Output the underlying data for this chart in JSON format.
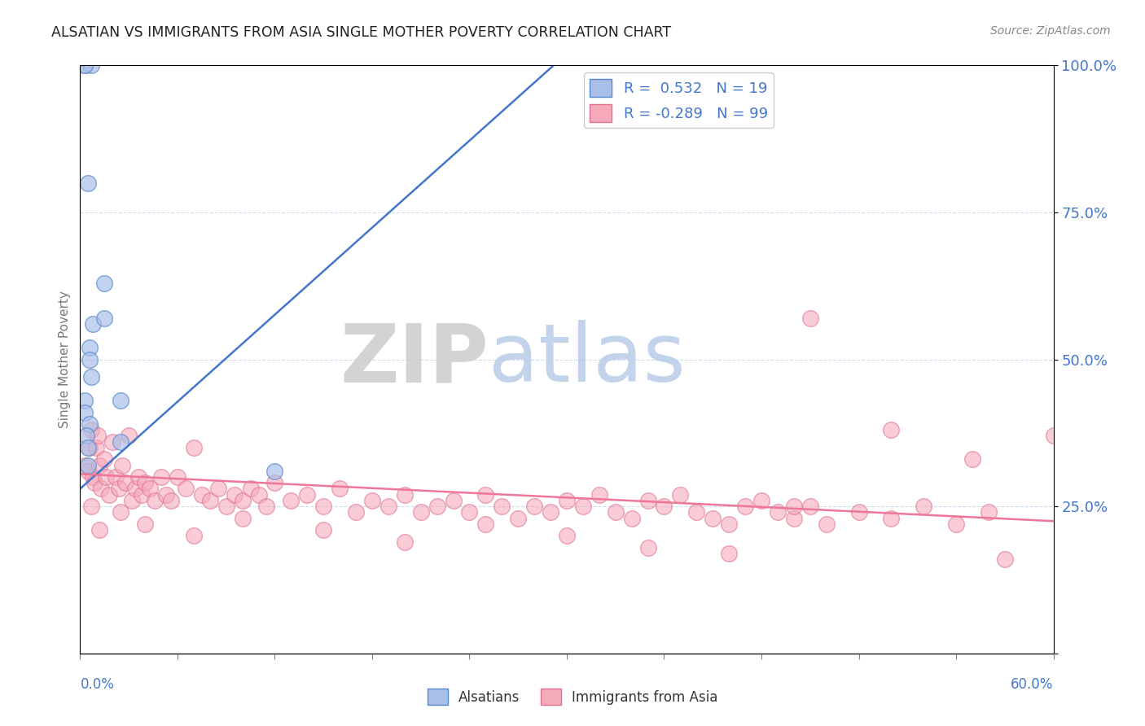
{
  "title": "ALSATIAN VS IMMIGRANTS FROM ASIA SINGLE MOTHER POVERTY CORRELATION CHART",
  "source": "Source: ZipAtlas.com",
  "ylabel": "Single Mother Poverty",
  "x_min": 0.0,
  "x_max": 0.6,
  "y_min": 0.0,
  "y_max": 1.0,
  "watermark_zip": "ZIP",
  "watermark_atlas": "atlas",
  "blue_R": 0.532,
  "blue_N": 19,
  "pink_R": -0.289,
  "pink_N": 99,
  "blue_fill": "#AABFE8",
  "blue_edge": "#5588CC",
  "pink_fill": "#F5AABB",
  "pink_edge": "#E07090",
  "blue_line": "#4477CC",
  "pink_line": "#EE7799",
  "legend_label_blue": "Alsatians",
  "legend_label_pink": "Immigrants from Asia",
  "blue_trend_x0": 0.0,
  "blue_trend_y0": 0.28,
  "blue_trend_x1": 0.3,
  "blue_trend_y1": 1.02,
  "pink_trend_x0": 0.0,
  "pink_trend_y0": 0.305,
  "pink_trend_x1": 0.6,
  "pink_trend_y1": 0.225,
  "alsatian_x": [
    0.003,
    0.007,
    0.003,
    0.003,
    0.003,
    0.006,
    0.004,
    0.005,
    0.008,
    0.006,
    0.006,
    0.007,
    0.015,
    0.015,
    0.025,
    0.025,
    0.12,
    0.005,
    0.005
  ],
  "alsatian_y": [
    1.0,
    1.0,
    1.0,
    0.43,
    0.41,
    0.39,
    0.37,
    0.35,
    0.56,
    0.52,
    0.5,
    0.47,
    0.63,
    0.57,
    0.43,
    0.36,
    0.31,
    0.8,
    0.32
  ],
  "asia_x": [
    0.003,
    0.005,
    0.006,
    0.007,
    0.008,
    0.009,
    0.01,
    0.011,
    0.012,
    0.013,
    0.015,
    0.016,
    0.018,
    0.02,
    0.022,
    0.024,
    0.026,
    0.028,
    0.03,
    0.032,
    0.034,
    0.036,
    0.038,
    0.04,
    0.043,
    0.046,
    0.05,
    0.053,
    0.056,
    0.06,
    0.065,
    0.07,
    0.075,
    0.08,
    0.085,
    0.09,
    0.095,
    0.1,
    0.105,
    0.11,
    0.115,
    0.12,
    0.13,
    0.14,
    0.15,
    0.16,
    0.17,
    0.18,
    0.19,
    0.2,
    0.21,
    0.22,
    0.23,
    0.24,
    0.25,
    0.26,
    0.27,
    0.28,
    0.29,
    0.3,
    0.31,
    0.32,
    0.33,
    0.34,
    0.35,
    0.36,
    0.37,
    0.38,
    0.39,
    0.4,
    0.41,
    0.42,
    0.43,
    0.44,
    0.45,
    0.46,
    0.48,
    0.5,
    0.52,
    0.54,
    0.56,
    0.007,
    0.012,
    0.025,
    0.04,
    0.07,
    0.1,
    0.15,
    0.2,
    0.25,
    0.3,
    0.35,
    0.4,
    0.45,
    0.5,
    0.55,
    0.44,
    0.57,
    0.6
  ],
  "asia_y": [
    0.32,
    0.31,
    0.35,
    0.38,
    0.3,
    0.29,
    0.35,
    0.37,
    0.32,
    0.28,
    0.33,
    0.3,
    0.27,
    0.36,
    0.3,
    0.28,
    0.32,
    0.29,
    0.37,
    0.26,
    0.28,
    0.3,
    0.27,
    0.29,
    0.28,
    0.26,
    0.3,
    0.27,
    0.26,
    0.3,
    0.28,
    0.35,
    0.27,
    0.26,
    0.28,
    0.25,
    0.27,
    0.26,
    0.28,
    0.27,
    0.25,
    0.29,
    0.26,
    0.27,
    0.25,
    0.28,
    0.24,
    0.26,
    0.25,
    0.27,
    0.24,
    0.25,
    0.26,
    0.24,
    0.27,
    0.25,
    0.23,
    0.25,
    0.24,
    0.26,
    0.25,
    0.27,
    0.24,
    0.23,
    0.26,
    0.25,
    0.27,
    0.24,
    0.23,
    0.22,
    0.25,
    0.26,
    0.24,
    0.23,
    0.25,
    0.22,
    0.24,
    0.23,
    0.25,
    0.22,
    0.24,
    0.25,
    0.21,
    0.24,
    0.22,
    0.2,
    0.23,
    0.21,
    0.19,
    0.22,
    0.2,
    0.18,
    0.17,
    0.57,
    0.38,
    0.33,
    0.25,
    0.16,
    0.37
  ]
}
